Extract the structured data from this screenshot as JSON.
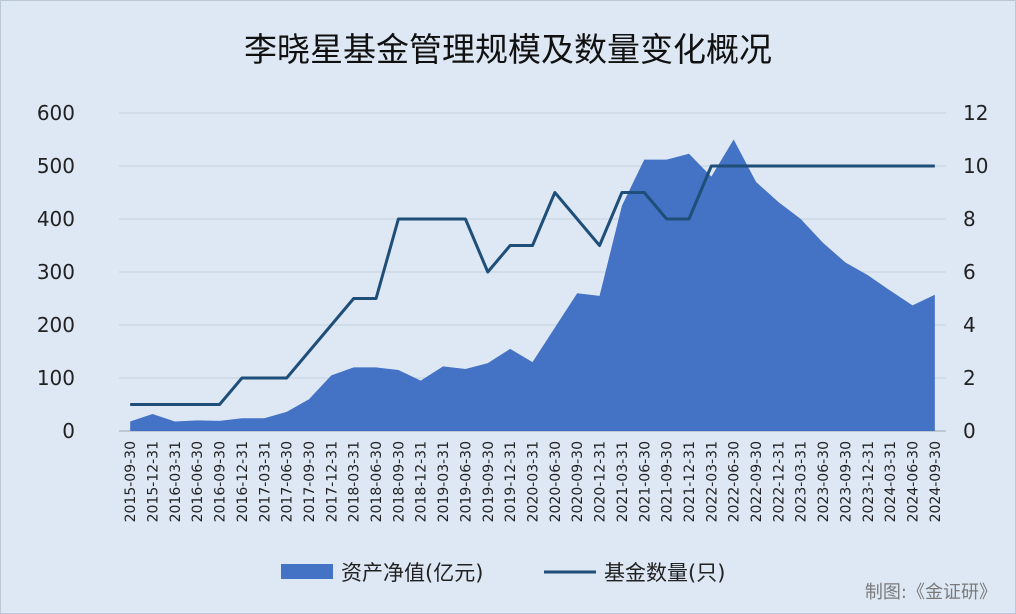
{
  "chart_data": {
    "type": "area+line",
    "title": "李晓星基金管理规模及数量变化概况",
    "x": [
      "2015-09-30",
      "2015-12-31",
      "2016-03-31",
      "2016-06-30",
      "2016-09-30",
      "2016-12-31",
      "2017-03-31",
      "2017-06-30",
      "2017-09-30",
      "2017-12-31",
      "2018-03-31",
      "2018-06-30",
      "2018-09-30",
      "2018-12-31",
      "2019-03-31",
      "2019-06-30",
      "2019-09-30",
      "2019-12-31",
      "2020-03-31",
      "2020-06-30",
      "2020-09-30",
      "2020-12-31",
      "2021-03-31",
      "2021-06-30",
      "2021-09-30",
      "2021-12-31",
      "2022-03-31",
      "2022-06-30",
      "2022-09-30",
      "2022-12-31",
      "2023-03-31",
      "2023-06-30",
      "2023-09-30",
      "2023-12-31",
      "2024-03-31",
      "2024-06-30",
      "2024-09-30"
    ],
    "series": [
      {
        "name": "资产净值(亿元)",
        "type": "area",
        "axis": "left",
        "color": "#4472c4",
        "values": [
          18,
          32,
          18,
          20,
          19,
          24,
          24,
          36,
          60,
          105,
          120,
          120,
          115,
          95,
          122,
          117,
          128,
          155,
          130,
          195,
          260,
          255,
          425,
          512,
          512,
          523,
          480,
          550,
          470,
          432,
          400,
          355,
          318,
          294,
          265,
          237,
          257
        ]
      },
      {
        "name": "基金数量(只)",
        "type": "line",
        "axis": "right",
        "color": "#1f4e79",
        "values": [
          1,
          1,
          1,
          1,
          1,
          2,
          2,
          2,
          3,
          4,
          5,
          5,
          8,
          8,
          8,
          8,
          6,
          7,
          7,
          9,
          8,
          7,
          9,
          9,
          8,
          8,
          10,
          10,
          10,
          10,
          10,
          10,
          10,
          10,
          10,
          10,
          10
        ]
      }
    ],
    "left_axis": {
      "min": 0,
      "max": 600,
      "ticks": [
        0,
        100,
        200,
        300,
        400,
        500,
        600
      ]
    },
    "right_axis": {
      "min": 0,
      "max": 12,
      "ticks": [
        0,
        2,
        4,
        6,
        8,
        10,
        12
      ]
    },
    "grid": true,
    "legend_position": "bottom"
  },
  "credit": "制图:《金证研》"
}
